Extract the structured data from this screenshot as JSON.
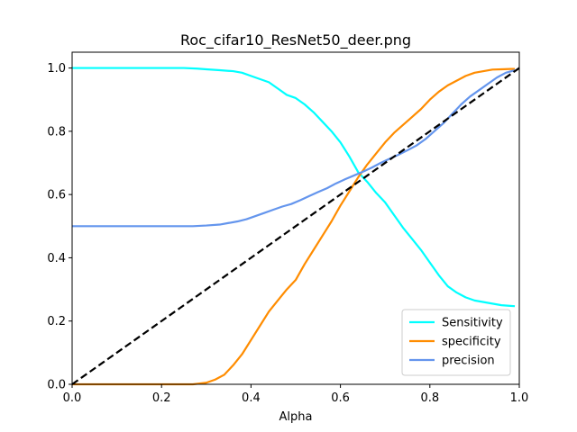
{
  "chart_data": {
    "type": "line",
    "title": "Roc_cifar10_ResNet50_deer.png",
    "xlabel": "Alpha",
    "ylabel": "",
    "xlim": [
      0,
      1
    ],
    "ylim": [
      0,
      1.05
    ],
    "xticks": [
      0.0,
      0.2,
      0.4,
      0.6,
      0.8,
      1.0
    ],
    "yticks": [
      0.0,
      0.2,
      0.4,
      0.6,
      0.8,
      1.0
    ],
    "grid": false,
    "legend_position": "lower-right",
    "series": [
      {
        "name": "Sensitivity",
        "color": "#00ffff",
        "dashed": false,
        "x": [
          0.0,
          0.1,
          0.2,
          0.25,
          0.28,
          0.3,
          0.33,
          0.36,
          0.38,
          0.4,
          0.42,
          0.44,
          0.46,
          0.48,
          0.5,
          0.52,
          0.54,
          0.56,
          0.58,
          0.6,
          0.62,
          0.64,
          0.66,
          0.68,
          0.7,
          0.72,
          0.74,
          0.76,
          0.78,
          0.8,
          0.82,
          0.84,
          0.86,
          0.88,
          0.9,
          0.92,
          0.94,
          0.96,
          0.98,
          0.99
        ],
        "y": [
          1.0,
          1.0,
          1.0,
          1.0,
          0.998,
          0.996,
          0.993,
          0.99,
          0.985,
          0.975,
          0.965,
          0.955,
          0.935,
          0.915,
          0.905,
          0.885,
          0.86,
          0.83,
          0.8,
          0.765,
          0.72,
          0.67,
          0.64,
          0.605,
          0.575,
          0.535,
          0.495,
          0.46,
          0.425,
          0.385,
          0.345,
          0.31,
          0.29,
          0.275,
          0.265,
          0.26,
          0.255,
          0.25,
          0.248,
          0.247
        ]
      },
      {
        "name": "specificity",
        "color": "#ff8c00",
        "dashed": false,
        "x": [
          0.0,
          0.1,
          0.2,
          0.27,
          0.3,
          0.32,
          0.34,
          0.36,
          0.38,
          0.4,
          0.42,
          0.44,
          0.46,
          0.48,
          0.5,
          0.52,
          0.54,
          0.56,
          0.58,
          0.6,
          0.62,
          0.64,
          0.66,
          0.68,
          0.7,
          0.72,
          0.74,
          0.76,
          0.78,
          0.8,
          0.82,
          0.84,
          0.86,
          0.88,
          0.9,
          0.92,
          0.94,
          0.96,
          0.98,
          0.99
        ],
        "y": [
          0.0,
          0.0,
          0.0,
          0.0,
          0.005,
          0.015,
          0.03,
          0.06,
          0.095,
          0.14,
          0.185,
          0.23,
          0.265,
          0.3,
          0.33,
          0.38,
          0.425,
          0.47,
          0.515,
          0.565,
          0.61,
          0.655,
          0.695,
          0.73,
          0.765,
          0.795,
          0.82,
          0.845,
          0.87,
          0.9,
          0.925,
          0.945,
          0.96,
          0.975,
          0.985,
          0.99,
          0.995,
          0.996,
          0.997,
          0.997
        ]
      },
      {
        "name": "precision",
        "color": "#6495ed",
        "dashed": false,
        "x": [
          0.0,
          0.1,
          0.2,
          0.27,
          0.3,
          0.33,
          0.35,
          0.37,
          0.39,
          0.41,
          0.43,
          0.45,
          0.47,
          0.49,
          0.51,
          0.53,
          0.55,
          0.57,
          0.59,
          0.61,
          0.63,
          0.65,
          0.67,
          0.69,
          0.71,
          0.73,
          0.75,
          0.77,
          0.79,
          0.81,
          0.83,
          0.85,
          0.87,
          0.89,
          0.91,
          0.93,
          0.95,
          0.97,
          0.99
        ],
        "y": [
          0.5,
          0.5,
          0.5,
          0.5,
          0.502,
          0.505,
          0.51,
          0.515,
          0.522,
          0.532,
          0.542,
          0.552,
          0.562,
          0.57,
          0.582,
          0.595,
          0.608,
          0.62,
          0.635,
          0.648,
          0.66,
          0.672,
          0.685,
          0.7,
          0.713,
          0.726,
          0.74,
          0.755,
          0.775,
          0.8,
          0.825,
          0.855,
          0.885,
          0.91,
          0.93,
          0.95,
          0.97,
          0.985,
          0.993
        ]
      },
      {
        "name": "",
        "color": "#000000",
        "dashed": true,
        "x": [
          0.0,
          1.0
        ],
        "y": [
          0.0,
          1.0
        ]
      }
    ]
  }
}
